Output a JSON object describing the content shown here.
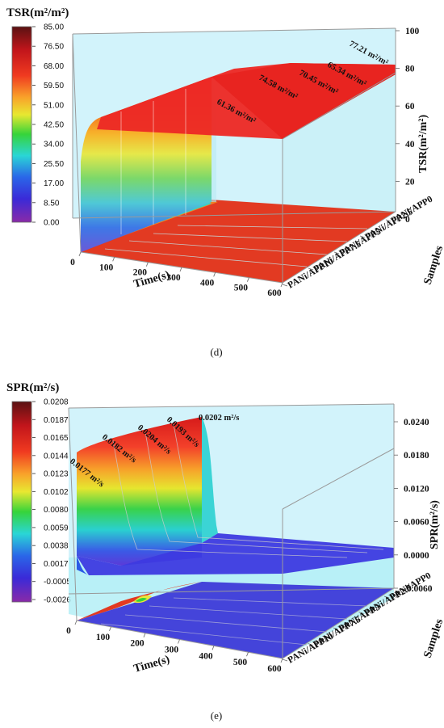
{
  "chart_data": [
    {
      "type": "surface3d",
      "panel_label": "(d)",
      "colorbar_title": "TSR(m²/m²)",
      "colorbar_ticks": [
        "85.00",
        "76.50",
        "68.00",
        "59.50",
        "51.00",
        "42.50",
        "34.00",
        "25.50",
        "17.00",
        "8.50",
        "0.00"
      ],
      "x_label": "Time(s)",
      "x_ticks": [
        "0",
        "100",
        "200",
        "300",
        "400",
        "500",
        "600"
      ],
      "samples_label": "Samples",
      "samples": [
        "PANi/APP0",
        "PANi/APP2.5",
        "PANi/APP5",
        "PANi/APP7.5",
        "PANi/APP10"
      ],
      "z_label": "TSR(m²/m²)",
      "z_ticks": [
        "100",
        "80",
        "60",
        "40",
        "20",
        "0"
      ],
      "zlim": [
        0,
        100
      ],
      "annotations": [
        "77.21 m²/m²",
        "65.34 m²/m²",
        "70.45 m²/m²",
        "74.58 m²/m²",
        "61.36 m²/m²"
      ],
      "final_values": [
        77.21,
        65.34,
        70.45,
        74.58,
        61.36
      ]
    },
    {
      "type": "surface3d",
      "panel_label": "(e)",
      "colorbar_title": "SPR(m²/s)",
      "colorbar_ticks": [
        "0.0208",
        "0.0187",
        "0.0165",
        "0.0144",
        "0.0123",
        "0.0102",
        "0.0080",
        "0.0059",
        "0.0038",
        "0.0017",
        "-0.0005",
        "-0.0026"
      ],
      "x_label": "Time(s)",
      "x_ticks": [
        "0",
        "100",
        "200",
        "300",
        "400",
        "500",
        "600"
      ],
      "samples_label": "Samples",
      "samples": [
        "PANi/APP0",
        "PANi/APP2.5",
        "PANi/APP5",
        "PANi/APP7.5",
        "PANi/APP10"
      ],
      "z_label": "SPR(m²/s)",
      "z_ticks": [
        "0.0240",
        "0.0180",
        "0.0120",
        "0.0060",
        "0.0000",
        "-0.0060"
      ],
      "zlim": [
        -0.006,
        0.024
      ],
      "annotations": [
        "0.0177 m²/s",
        "0.0182 m²/s",
        "0.0204 m²/s",
        "0.0193 m²/s",
        "0.0202 m²/s"
      ],
      "peak_values": [
        0.0177,
        0.0182,
        0.0204,
        0.0193,
        0.0202
      ]
    }
  ]
}
